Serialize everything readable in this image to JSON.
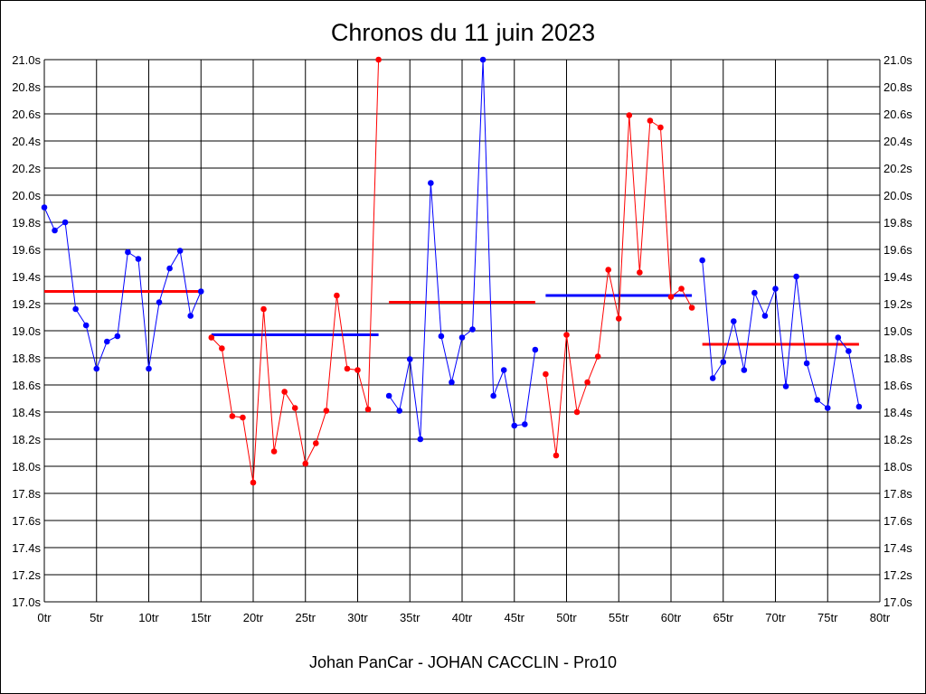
{
  "chart_data": {
    "type": "line",
    "title": "Chronos du 11 juin 2023",
    "footer": "Johan PanCar - JOHAN CACCLIN - Pro10",
    "xlim": [
      0,
      80
    ],
    "ylim": [
      17.0,
      21.0
    ],
    "grid": true,
    "x_tick_labels": [
      "0tr",
      "5tr",
      "10tr",
      "15tr",
      "20tr",
      "25tr",
      "30tr",
      "35tr",
      "40tr",
      "45tr",
      "50tr",
      "55tr",
      "60tr",
      "65tr",
      "70tr",
      "75tr",
      "80tr"
    ],
    "y_tick_labels": [
      "21.0s",
      "20.8s",
      "20.6s",
      "20.4s",
      "20.2s",
      "20.0s",
      "19.8s",
      "19.6s",
      "19.4s",
      "19.2s",
      "19.0s",
      "18.8s",
      "18.6s",
      "18.4s",
      "18.2s",
      "18.0s",
      "17.8s",
      "17.6s",
      "17.4s",
      "17.2s",
      "17.0s"
    ],
    "colors": {
      "blue": "#0000ff",
      "red": "#ff0000",
      "grid": "#000000"
    },
    "series": [
      {
        "color": "#0000ff",
        "x": [
          0,
          1,
          2,
          3,
          4,
          5,
          6,
          7,
          8,
          9,
          10,
          11,
          12,
          13,
          14,
          15
        ],
        "y": [
          19.91,
          19.74,
          19.8,
          19.16,
          19.04,
          18.72,
          18.92,
          18.96,
          19.58,
          19.53,
          18.72,
          19.21,
          19.46,
          19.59,
          19.11,
          19.29
        ]
      },
      {
        "color": "#ff0000",
        "x": [
          16,
          17,
          18,
          19,
          20,
          21,
          22,
          23,
          24,
          25,
          26,
          27,
          28,
          29,
          30,
          31,
          32
        ],
        "y": [
          18.95,
          18.87,
          18.37,
          18.36,
          17.88,
          19.16,
          18.11,
          18.55,
          18.43,
          18.02,
          18.17,
          18.41,
          19.26,
          18.72,
          18.71,
          18.42,
          21.0
        ]
      },
      {
        "color": "#0000ff",
        "x": [
          33,
          34,
          35,
          36,
          37,
          38,
          39,
          40,
          41,
          42,
          43,
          44,
          45,
          46,
          47
        ],
        "y": [
          18.52,
          18.41,
          18.79,
          18.2,
          20.09,
          18.96,
          18.62,
          18.95,
          19.01,
          21.0,
          18.52,
          18.71,
          18.3,
          18.31,
          18.86
        ]
      },
      {
        "color": "#ff0000",
        "x": [
          48,
          49,
          50,
          51,
          52,
          53,
          54,
          55,
          56,
          57,
          58,
          59,
          60,
          61,
          62
        ],
        "y": [
          18.68,
          18.08,
          18.97,
          18.4,
          18.62,
          18.81,
          19.45,
          19.09,
          20.59,
          19.43,
          20.55,
          20.5,
          19.25,
          19.31,
          19.17
        ]
      },
      {
        "color": "#0000ff",
        "x": [
          63,
          64,
          65,
          66,
          67,
          68,
          69,
          70,
          71,
          72,
          73,
          74,
          75,
          76,
          77,
          78
        ],
        "y": [
          19.52,
          18.65,
          18.77,
          19.07,
          18.71,
          19.28,
          19.11,
          19.31,
          18.59,
          19.4,
          18.76,
          18.49,
          18.43,
          18.95,
          18.85,
          18.44
        ]
      }
    ],
    "averages": [
      {
        "color": "#ff0000",
        "x_start": 0,
        "x_end": 15,
        "y": 19.29
      },
      {
        "color": "#0000ff",
        "x_start": 16,
        "x_end": 32,
        "y": 18.97
      },
      {
        "color": "#ff0000",
        "x_start": 33,
        "x_end": 47,
        "y": 19.21
      },
      {
        "color": "#0000ff",
        "x_start": 48,
        "x_end": 62,
        "y": 19.26
      },
      {
        "color": "#ff0000",
        "x_start": 63,
        "x_end": 78,
        "y": 18.9
      }
    ]
  }
}
